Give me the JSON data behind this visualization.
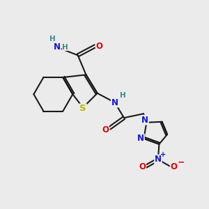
{
  "background_color": "#ebebeb",
  "figsize": [
    3.0,
    3.0
  ],
  "dpi": 100,
  "atom_colors": {
    "C": "#000000",
    "N": "#1414d4",
    "O": "#e00000",
    "S": "#b8b800",
    "H": "#3a8a8a"
  },
  "bond_color": "#1a1a1a",
  "bond_width": 1.5,
  "font_size_atom": 8.5,
  "font_size_h": 7.5
}
